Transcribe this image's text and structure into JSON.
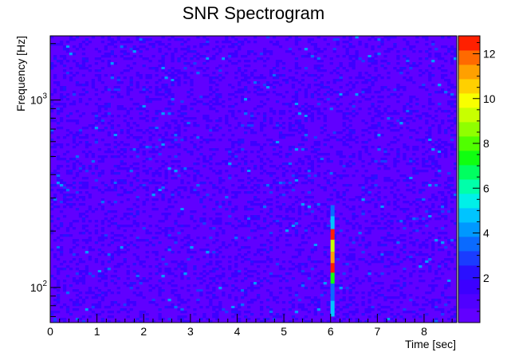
{
  "chart_data": {
    "type": "heatmap",
    "title": "SNR Spectrogram",
    "xlabel": "Time [sec]",
    "ylabel": "Frequency [Hz]",
    "x_range": [
      0,
      8.7
    ],
    "y_range": [
      65,
      2200
    ],
    "y_scale": "log",
    "x_ticks": [
      "0",
      "1",
      "2",
      "3",
      "4",
      "5",
      "6",
      "7",
      "8"
    ],
    "x_tick_values": [
      0,
      1,
      2,
      3,
      4,
      5,
      6,
      7,
      8
    ],
    "y_ticks": [
      {
        "base": "10",
        "exponent": "2",
        "value": 100
      },
      {
        "base": "10",
        "exponent": "3",
        "value": 1000
      }
    ],
    "colorbar": {
      "range": [
        0,
        12.8
      ],
      "ticks": [
        "2",
        "4",
        "6",
        "8",
        "10",
        "12"
      ],
      "tick_values": [
        2,
        4,
        6,
        8,
        10,
        12
      ],
      "levels": 20
    },
    "background_level": 0.8,
    "event": {
      "time": 6.05,
      "segments": [
        {
          "f_low": 70,
          "f_high": 85,
          "snr": 4.5
        },
        {
          "f_low": 85,
          "f_high": 105,
          "snr": 3.2
        },
        {
          "f_low": 105,
          "f_high": 120,
          "snr": 7.5
        },
        {
          "f_low": 120,
          "f_high": 135,
          "snr": 12.3
        },
        {
          "f_low": 135,
          "f_high": 155,
          "snr": 11.2
        },
        {
          "f_low": 155,
          "f_high": 180,
          "snr": 9.5
        },
        {
          "f_low": 180,
          "f_high": 205,
          "snr": 12.6
        },
        {
          "f_low": 205,
          "f_high": 240,
          "snr": 4.8
        },
        {
          "f_low": 240,
          "f_high": 275,
          "snr": 3.6
        }
      ]
    }
  },
  "colors": {
    "palette": [
      "#6200ff",
      "#5000ff",
      "#3c00ff",
      "#2a10ff",
      "#1a3cff",
      "#0a6aff",
      "#0098ff",
      "#00c4ff",
      "#00f0e8",
      "#00ffaa",
      "#00ff60",
      "#10ff10",
      "#50ff00",
      "#90ff00",
      "#c8ff00",
      "#f8ff00",
      "#ffd000",
      "#ffa000",
      "#ff6a00",
      "#ff2000"
    ]
  }
}
